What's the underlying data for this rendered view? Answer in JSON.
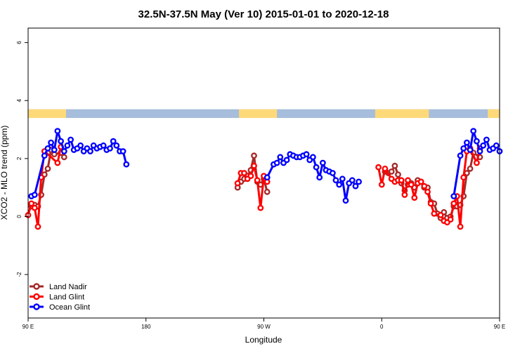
{
  "chart_data": {
    "type": "line",
    "title": "32.5N-37.5N May (Ver 10)   2015-01-01 to 2020-12-18",
    "xlabel": "Longitude",
    "ylabel": "XCO2 - MLO trend (ppm)",
    "xlim": [
      90,
      450
    ],
    "ylim": [
      -3.5,
      6.5
    ],
    "x_ticks": [
      {
        "value": 90,
        "label": "90 E"
      },
      {
        "value": 180,
        "label": "180"
      },
      {
        "value": 270,
        "label": "90 W"
      },
      {
        "value": 360,
        "label": "0"
      },
      {
        "value": 450,
        "label": "90 E"
      },
      {
        "value": 540,
        "label": "180"
      }
    ],
    "y_ticks": [
      {
        "value": -2,
        "label": "-2"
      },
      {
        "value": 0,
        "label": "0"
      },
      {
        "value": 2,
        "label": "2"
      },
      {
        "value": 4,
        "label": "4"
      },
      {
        "value": 6,
        "label": "6"
      }
    ],
    "grid": false,
    "legend_position": "bottom-left",
    "land_ocean_strip": {
      "y_range": [
        3.4,
        3.7
      ],
      "ocean_color": "#a6bddb",
      "land_color": "#fdd97a",
      "land_segments": [
        [
          90,
          119
        ],
        [
          251,
          280
        ],
        [
          355,
          396
        ],
        [
          441,
          450
        ]
      ]
    },
    "series": [
      {
        "name": "Land Nadir",
        "color": "#a52a2a",
        "segments": [
          [
            [
              92.5,
              0.35
            ],
            [
              95,
              0.4
            ],
            [
              97.5,
              0.35
            ],
            [
              100,
              0.75
            ],
            [
              102.5,
              1.45
            ],
            [
              105,
              1.65
            ],
            [
              107.5,
              2.3
            ],
            [
              110,
              2.15
            ],
            [
              115,
              2.2
            ],
            [
              117.5,
              2.05
            ]
          ],
          [
            [
              250,
              1.0
            ],
            [
              252.5,
              1.2
            ],
            [
              255,
              1.3
            ],
            [
              257.5,
              1.4
            ],
            [
              260,
              1.6
            ],
            [
              262.5,
              2.1
            ],
            [
              265,
              1.2
            ],
            [
              267.5,
              1.1
            ],
            [
              270,
              1.3
            ],
            [
              272.5,
              0.85
            ]
          ],
          [
            [
              362.5,
              1.55
            ],
            [
              365,
              1.5
            ],
            [
              367.5,
              1.55
            ],
            [
              370,
              1.75
            ],
            [
              372.5,
              1.45
            ],
            [
              375,
              1.15
            ],
            [
              377.5,
              0.9
            ],
            [
              380,
              1.1
            ],
            [
              382.5,
              1.15
            ],
            [
              385,
              1.0
            ],
            [
              387.5,
              1.25
            ],
            [
              390,
              1.2
            ],
            [
              392.5,
              1.0
            ],
            [
              395,
              1.0
            ],
            [
              397.5,
              0.5
            ],
            [
              400,
              0.45
            ],
            [
              402.5,
              0.1
            ],
            [
              405,
              -0.05
            ],
            [
              407.5,
              0.15
            ],
            [
              410,
              -0.05
            ],
            [
              412.5,
              0.0
            ],
            [
              415,
              0.35
            ],
            [
              417.5,
              0.35
            ],
            [
              420,
              0.4
            ],
            [
              422.5,
              0.7
            ],
            [
              425,
              1.5
            ],
            [
              427.5,
              1.65
            ],
            [
              430,
              2.2
            ],
            [
              435,
              2.05
            ]
          ]
        ]
      },
      {
        "name": "Land Glint",
        "color": "#ff0000",
        "segments": [
          [
            [
              90,
              0.05
            ],
            [
              92.5,
              0.45
            ],
            [
              95,
              0.3
            ],
            [
              97.5,
              -0.35
            ],
            [
              100,
              1.35
            ],
            [
              102.5,
              2.25
            ],
            [
              112.5,
              1.85
            ],
            [
              115,
              2.4
            ]
          ],
          [
            [
              250,
              1.15
            ],
            [
              252.5,
              1.5
            ],
            [
              255,
              1.5
            ],
            [
              257.5,
              1.3
            ],
            [
              260,
              1.4
            ],
            [
              262.5,
              1.75
            ],
            [
              265,
              1.25
            ],
            [
              267.5,
              0.3
            ],
            [
              270,
              1.4
            ],
            [
              272.5,
              1.2
            ]
          ],
          [
            [
              357.5,
              1.7
            ],
            [
              360,
              1.1
            ],
            [
              362.5,
              1.65
            ],
            [
              367.5,
              1.3
            ],
            [
              370,
              1.2
            ],
            [
              372.5,
              1.25
            ],
            [
              375,
              1.25
            ],
            [
              377.5,
              0.75
            ],
            [
              380,
              1.25
            ],
            [
              382.5,
              1.1
            ],
            [
              385,
              0.65
            ],
            [
              387.5,
              1.15
            ],
            [
              390,
              1.2
            ],
            [
              392.5,
              1.05
            ],
            [
              395,
              0.85
            ],
            [
              397.5,
              0.45
            ],
            [
              400,
              0.1
            ],
            [
              405,
              0.05
            ],
            [
              407.5,
              -0.15
            ],
            [
              410,
              -0.2
            ],
            [
              412.5,
              -0.1
            ],
            [
              415,
              0.45
            ],
            [
              417.5,
              0.7
            ],
            [
              420,
              -0.35
            ],
            [
              422.5,
              1.35
            ],
            [
              425,
              2.25
            ],
            [
              427.5,
              2.35
            ],
            [
              432.5,
              1.85
            ],
            [
              435,
              2.35
            ]
          ]
        ]
      },
      {
        "name": "Ocean Glint",
        "color": "#0000ff",
        "segments": [
          [
            [
              92.5,
              0.7
            ],
            [
              95,
              0.75
            ],
            [
              102.5,
              2.1
            ],
            [
              105,
              2.35
            ],
            [
              107.5,
              2.55
            ],
            [
              110,
              2.3
            ],
            [
              112.5,
              2.95
            ],
            [
              115,
              2.6
            ],
            [
              117.5,
              2.25
            ],
            [
              120,
              2.45
            ],
            [
              122.5,
              2.65
            ],
            [
              125,
              2.3
            ],
            [
              127.5,
              2.35
            ],
            [
              130,
              2.45
            ],
            [
              132.5,
              2.25
            ],
            [
              135,
              2.35
            ],
            [
              137.5,
              2.25
            ],
            [
              140,
              2.45
            ],
            [
              142.5,
              2.35
            ],
            [
              145,
              2.4
            ],
            [
              147.5,
              2.45
            ],
            [
              150,
              2.3
            ],
            [
              152.5,
              2.35
            ],
            [
              155,
              2.6
            ],
            [
              157.5,
              2.45
            ],
            [
              160,
              2.25
            ],
            [
              162.5,
              2.25
            ],
            [
              165,
              1.8
            ]
          ],
          [
            [
              272.5,
              1.35
            ],
            [
              277.5,
              1.8
            ],
            [
              280,
              1.85
            ],
            [
              282.5,
              2.05
            ],
            [
              285,
              1.85
            ],
            [
              287.5,
              1.95
            ],
            [
              290,
              2.15
            ],
            [
              292.5,
              2.1
            ],
            [
              295,
              2.05
            ],
            [
              297.5,
              2.05
            ],
            [
              300,
              2.1
            ],
            [
              302.5,
              2.15
            ],
            [
              305,
              1.95
            ],
            [
              307.5,
              2.05
            ],
            [
              310,
              1.7
            ],
            [
              312.5,
              1.35
            ],
            [
              315,
              1.85
            ],
            [
              317.5,
              1.6
            ],
            [
              320,
              1.55
            ],
            [
              322.5,
              1.5
            ],
            [
              325,
              1.25
            ],
            [
              327.5,
              1.1
            ],
            [
              330,
              1.3
            ],
            [
              332.5,
              0.55
            ],
            [
              335,
              1.15
            ],
            [
              337.5,
              1.25
            ],
            [
              340,
              1.05
            ],
            [
              342.5,
              1.2
            ]
          ],
          [
            [
              415,
              0.7
            ],
            [
              420,
              2.1
            ],
            [
              422.5,
              2.35
            ],
            [
              425,
              2.55
            ],
            [
              427.5,
              2.3
            ],
            [
              430,
              2.95
            ],
            [
              432.5,
              2.6
            ],
            [
              435,
              2.25
            ],
            [
              437.5,
              2.45
            ],
            [
              440,
              2.65
            ],
            [
              442.5,
              2.3
            ],
            [
              445,
              2.35
            ],
            [
              447.5,
              2.45
            ],
            [
              450,
              2.25
            ]
          ]
        ]
      }
    ]
  }
}
